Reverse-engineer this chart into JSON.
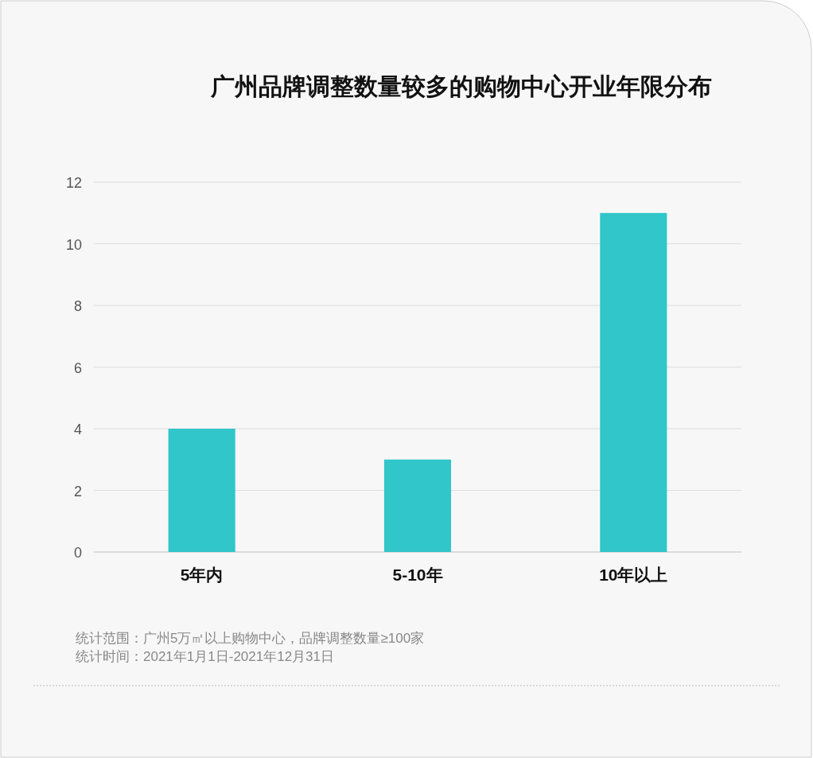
{
  "chart_data": {
    "type": "bar",
    "title": "广州品牌调整数量较多的购物中心开业年限分布",
    "categories": [
      "5年内",
      "5-10年",
      "10年以上"
    ],
    "values": [
      4,
      3,
      11
    ],
    "color": "#31c6c9",
    "ylim": [
      0,
      12
    ],
    "yticks": [
      0,
      2,
      4,
      6,
      8,
      10,
      12
    ],
    "grid": "y",
    "annotations": [
      "统计范围：广州5万㎡以上购物中心，品牌调整数量≥100家",
      "统计时间：2021年1月1日-2021年12月31日"
    ]
  }
}
